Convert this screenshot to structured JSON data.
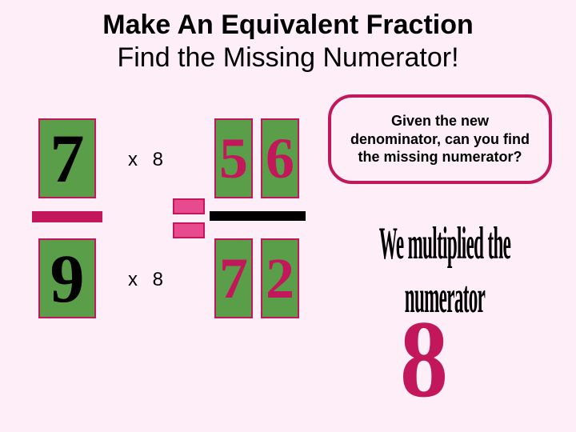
{
  "header": {
    "title": "Make An Equivalent Fraction",
    "subtitle": "Find the Missing Numerator!"
  },
  "fraction_left": {
    "numerator": "7",
    "denominator": "9",
    "digit_color": "#000000"
  },
  "fraction_right": {
    "numerator": "56",
    "denominator": "72",
    "digit_color": "#c2185b"
  },
  "multiplier_top": "x 8",
  "multiplier_bottom": "x 8",
  "bubble_text": "Given the new denominator, can you find the missing numerator?",
  "answer_text": "We multiplied the numerator",
  "answer_number": "8",
  "colors": {
    "background": "#fdeef7",
    "stamp_fill": "#5a9e4a",
    "magenta": "#c2185b",
    "pinkbox": "#e84a8f",
    "text": "#000000"
  },
  "stamps": {
    "left_size": [
      72,
      100
    ],
    "right_size": [
      48,
      100
    ],
    "left_fontsize": 86,
    "right_fontsize": 72
  }
}
